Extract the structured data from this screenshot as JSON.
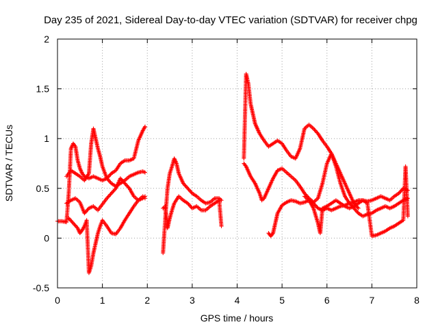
{
  "chart_data": {
    "type": "scatter",
    "title": "Day 235 of 2021, Sidereal Day-to-day VTEC variation (SDTVAR) for receiver chpg",
    "xlabel": "GPS time / hours",
    "ylabel": "SDTVAR / TECUs",
    "xlim": [
      0,
      8
    ],
    "ylim": [
      -0.5,
      2
    ],
    "xticks": [
      "0",
      "1",
      "2",
      "3",
      "4",
      "5",
      "6",
      "7",
      "8"
    ],
    "yticks": [
      "-0.5",
      "0",
      "0.5",
      "1",
      "1.5",
      "2"
    ],
    "grid": true,
    "marker": "+",
    "color": "#ff0000",
    "series": [
      {
        "name": "s1",
        "x": [
          0.0,
          0.1,
          0.2,
          0.25,
          0.3,
          0.35,
          0.4,
          0.45,
          0.5,
          0.55,
          0.6,
          0.7,
          0.8,
          0.9,
          1.0,
          1.1,
          1.2,
          1.3,
          1.4,
          1.5,
          1.6,
          1.7,
          1.8,
          1.9,
          1.95
        ],
        "y": [
          0.17,
          0.17,
          0.16,
          0.45,
          0.9,
          0.95,
          0.92,
          0.78,
          0.7,
          0.65,
          0.62,
          0.6,
          0.62,
          0.6,
          0.58,
          0.6,
          0.65,
          0.68,
          0.75,
          0.78,
          0.78,
          0.8,
          0.98,
          1.08,
          1.12
        ]
      },
      {
        "name": "s2",
        "x": [
          0.2,
          0.3,
          0.4,
          0.5,
          0.6,
          0.7,
          0.75,
          0.8,
          0.85,
          0.9,
          0.95,
          1.0,
          1.1,
          1.2,
          1.3,
          1.4,
          1.5,
          1.6,
          1.7,
          1.8,
          1.9,
          1.95
        ],
        "y": [
          0.62,
          0.68,
          0.65,
          0.62,
          0.58,
          0.65,
          0.95,
          1.1,
          1.0,
          0.9,
          0.82,
          0.72,
          0.6,
          0.55,
          0.52,
          0.55,
          0.58,
          0.62,
          0.64,
          0.66,
          0.67,
          0.66
        ]
      },
      {
        "name": "s3",
        "x": [
          0.2,
          0.3,
          0.4,
          0.5,
          0.6,
          0.7,
          0.8,
          0.9,
          1.0,
          1.1,
          1.2,
          1.3,
          1.4,
          1.5,
          1.6,
          1.7,
          1.8,
          1.9,
          1.95
        ],
        "y": [
          0.35,
          0.38,
          0.4,
          0.36,
          0.25,
          0.3,
          0.32,
          0.28,
          0.34,
          0.4,
          0.45,
          0.5,
          0.6,
          0.55,
          0.5,
          0.42,
          0.38,
          0.4,
          0.42
        ]
      },
      {
        "name": "s4",
        "x": [
          0.25,
          0.35,
          0.45,
          0.5,
          0.55,
          0.6,
          0.65,
          0.7,
          0.75,
          0.8,
          0.85,
          0.9,
          0.95,
          1.0,
          1.1,
          1.2,
          1.3,
          1.4,
          1.5,
          1.6,
          1.7,
          1.8,
          1.9,
          1.95
        ],
        "y": [
          0.2,
          0.15,
          0.1,
          0.05,
          0.08,
          0.12,
          0.18,
          -0.35,
          -0.28,
          -0.15,
          -0.05,
          0.05,
          0.12,
          0.18,
          0.12,
          0.05,
          0.04,
          0.1,
          0.18,
          0.25,
          0.32,
          0.38,
          0.42,
          0.4
        ]
      },
      {
        "name": "s5",
        "x": [
          2.35,
          2.4,
          2.45,
          2.5,
          2.55,
          2.6,
          2.65,
          2.7,
          2.8,
          2.9,
          3.0,
          3.1,
          3.2,
          3.3,
          3.4,
          3.5,
          3.6,
          3.65
        ],
        "y": [
          -0.15,
          0.2,
          0.5,
          0.65,
          0.72,
          0.8,
          0.75,
          0.65,
          0.55,
          0.5,
          0.45,
          0.42,
          0.38,
          0.35,
          0.36,
          0.4,
          0.4,
          0.38
        ]
      },
      {
        "name": "s6",
        "x": [
          2.35,
          2.4,
          2.45,
          2.5,
          2.55,
          2.6,
          2.7,
          2.8,
          2.9,
          3.0,
          3.1,
          3.2,
          3.3,
          3.4,
          3.5,
          3.6,
          3.65
        ],
        "y": [
          0.3,
          0.32,
          0.1,
          0.2,
          0.28,
          0.35,
          0.42,
          0.38,
          0.35,
          0.3,
          0.32,
          0.28,
          0.28,
          0.32,
          0.35,
          0.38,
          0.12
        ]
      },
      {
        "name": "s7",
        "x": [
          4.15,
          4.2,
          4.25,
          4.3,
          4.35,
          4.4,
          4.45,
          4.5,
          4.6,
          4.7,
          4.8,
          4.9,
          5.0,
          5.1,
          5.2,
          5.3,
          5.4,
          5.5,
          5.6,
          5.7,
          5.8,
          5.9,
          6.0,
          6.1,
          6.2,
          6.3,
          6.4,
          6.5,
          6.6,
          6.7
        ],
        "y": [
          0.8,
          1.65,
          1.55,
          1.35,
          1.25,
          1.15,
          1.1,
          1.05,
          0.98,
          0.92,
          0.95,
          0.98,
          0.95,
          0.88,
          0.82,
          0.8,
          0.9,
          1.1,
          1.14,
          1.1,
          1.05,
          0.98,
          0.92,
          0.85,
          0.75,
          0.65,
          0.55,
          0.45,
          0.35,
          0.3
        ]
      },
      {
        "name": "s8",
        "x": [
          4.15,
          4.2,
          4.3,
          4.4,
          4.5,
          4.55,
          4.6,
          4.7,
          4.8,
          4.9,
          5.0,
          5.1,
          5.2,
          5.3,
          5.4,
          5.5,
          5.6,
          5.7,
          5.8,
          5.9,
          6.0,
          6.1,
          6.2,
          6.3,
          6.4,
          6.5,
          6.6,
          6.7,
          6.8,
          6.9,
          7.0,
          7.1,
          7.2,
          7.3,
          7.4,
          7.5,
          7.6,
          7.7,
          7.8
        ],
        "y": [
          0.75,
          0.72,
          0.62,
          0.55,
          0.45,
          0.38,
          0.4,
          0.5,
          0.6,
          0.68,
          0.7,
          0.66,
          0.62,
          0.58,
          0.52,
          0.45,
          0.4,
          0.36,
          0.4,
          0.55,
          0.75,
          0.85,
          0.72,
          0.55,
          0.42,
          0.35,
          0.3,
          0.25,
          0.22,
          0.24,
          0.25,
          0.28,
          0.3,
          0.32,
          0.3,
          0.32,
          0.35,
          0.38,
          0.4
        ]
      },
      {
        "name": "s9",
        "x": [
          4.7,
          4.75,
          4.8,
          4.85,
          4.9,
          5.0,
          5.1,
          5.2,
          5.3,
          5.4,
          5.5,
          5.6,
          5.7,
          5.8,
          5.9,
          6.0,
          6.1,
          6.2,
          6.3,
          6.4,
          6.5,
          6.6,
          6.7,
          6.8,
          6.9,
          7.0,
          7.1,
          7.2,
          7.3,
          7.4,
          7.5,
          7.6,
          7.7,
          7.8
        ],
        "y": [
          0.05,
          0.02,
          0.05,
          0.15,
          0.25,
          0.33,
          0.36,
          0.38,
          0.37,
          0.35,
          0.36,
          0.38,
          0.35,
          0.3,
          0.28,
          0.3,
          0.28,
          0.3,
          0.32,
          0.33,
          0.35,
          0.36,
          0.38,
          0.38,
          0.37,
          0.38,
          0.4,
          0.42,
          0.4,
          0.38,
          0.42,
          0.45,
          0.5,
          0.48
        ]
      },
      {
        "name": "s10",
        "x": [
          5.5,
          5.6,
          5.7,
          5.8,
          5.85,
          5.9,
          6.0,
          6.1,
          6.2,
          6.3,
          6.4,
          6.5,
          6.6,
          6.7,
          6.8,
          6.9,
          7.0,
          7.1,
          7.2,
          7.3,
          7.4,
          7.5,
          7.6,
          7.7,
          7.75,
          7.8
        ],
        "y": [
          0.42,
          0.38,
          0.3,
          0.15,
          0.05,
          0.3,
          0.32,
          0.35,
          0.38,
          0.35,
          0.32,
          0.3,
          0.32,
          0.35,
          0.38,
          0.35,
          0.02,
          0.03,
          0.05,
          0.07,
          0.1,
          0.12,
          0.15,
          0.18,
          0.72,
          0.22
        ]
      }
    ]
  }
}
